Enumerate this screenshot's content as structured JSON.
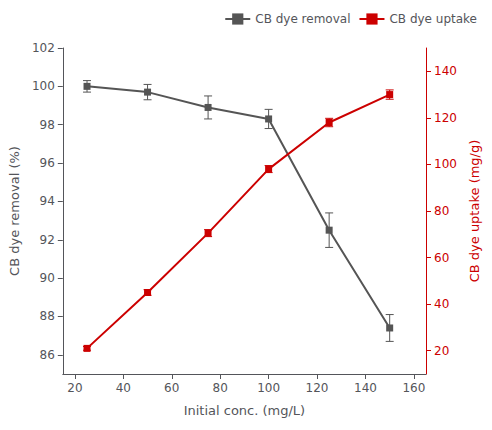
{
  "chart_data": {
    "type": "line",
    "x": [
      25,
      50,
      75,
      100,
      125,
      150
    ],
    "series": [
      {
        "name": "CB dye removal",
        "color": "#555555",
        "marker": "square",
        "values": [
          100.0,
          99.7,
          98.9,
          98.3,
          92.5,
          87.4
        ],
        "yerr": [
          0.3,
          0.4,
          0.6,
          0.5,
          0.9,
          0.7
        ]
      },
      {
        "name": "CB dye uptake",
        "color": "#cc0000",
        "marker": "square",
        "axis": "y2",
        "values": [
          21.0,
          45.0,
          70.5,
          98.0,
          118.0,
          130.0
        ],
        "yerr": [
          0.8,
          1.2,
          1.5,
          1.5,
          1.8,
          2.0
        ]
      }
    ],
    "xlabel": "Initial conc. (mg/L)",
    "ylabel": "CB dye removal (%)",
    "y2label": "CB dye uptake (mg/g)",
    "xlim": [
      15,
      165
    ],
    "xticks": [
      20,
      40,
      60,
      80,
      100,
      120,
      140,
      160
    ],
    "ylim": [
      85,
      102
    ],
    "yticks": [
      86,
      88,
      90,
      92,
      94,
      96,
      98,
      100,
      102
    ],
    "y2lim": [
      10,
      150
    ],
    "y2ticks": [
      20,
      40,
      60,
      80,
      100,
      120,
      140
    ],
    "y2color": "#cc0000",
    "legend": "upper right",
    "grid": false
  }
}
